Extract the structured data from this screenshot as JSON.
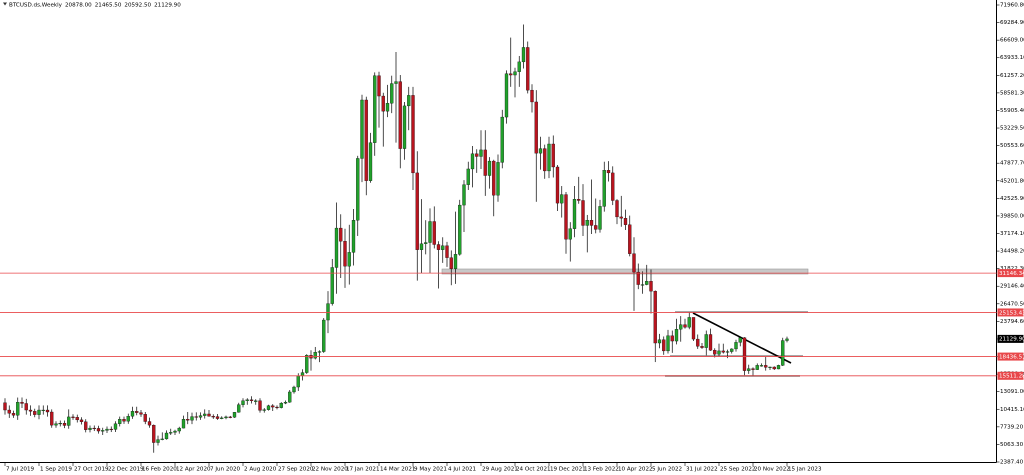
{
  "chart_data": {
    "type": "candlestick",
    "symbol": "BTCUSD.ds,Weekly",
    "ohlc_labels": [
      "20878.00",
      "21465.50",
      "20592.50",
      "21129.90"
    ],
    "up_color": "#22a02c",
    "down_color": "#b8141f",
    "wick_color": "#000000",
    "categories": [
      "7 Jul 2019",
      null,
      null,
      null,
      null,
      null,
      null,
      null,
      "1 Sep 2019",
      null,
      null,
      null,
      null,
      null,
      null,
      null,
      "27 Oct 2019",
      null,
      null,
      null,
      null,
      null,
      null,
      null,
      "22 Dec 2019",
      null,
      null,
      null,
      null,
      null,
      null,
      null,
      "16 Feb 2020",
      null,
      null,
      null,
      null,
      null,
      null,
      null,
      "12 Apr 2020",
      null,
      null,
      null,
      null,
      null,
      null,
      null,
      "7 Jun 2020",
      null,
      null,
      null,
      null,
      null,
      null,
      null,
      "2 Aug 2020",
      null,
      null,
      null,
      null,
      null,
      null,
      null,
      "27 Sep 2020",
      null,
      null,
      null,
      null,
      null,
      null,
      null,
      "22 Nov 2020",
      null,
      null,
      null,
      null,
      null,
      null,
      null,
      "17 Jan 2021",
      null,
      null,
      null,
      null,
      null,
      null,
      null,
      "14 Mar 2021",
      null,
      null,
      null,
      null,
      null,
      null,
      null,
      "9 May 2021",
      null,
      null,
      null,
      null,
      null,
      null,
      null,
      "4 Jul 2021",
      null,
      null,
      null,
      null,
      null,
      null,
      null,
      "29 Aug 2021",
      null,
      null,
      null,
      null,
      null,
      null,
      null,
      "24 Oct 2021",
      null,
      null,
      null,
      null,
      null,
      null,
      null,
      "19 Dec 2021",
      null,
      null,
      null,
      null,
      null,
      null,
      null,
      "13 Feb 2022",
      null,
      null,
      null,
      null,
      null,
      null,
      null,
      "10 Apr 2022",
      null,
      null,
      null,
      null,
      null,
      null,
      null,
      "5 Jun 2022",
      null,
      null,
      null,
      null,
      null,
      null,
      null,
      "31 Jul 2022",
      null,
      null,
      null,
      null,
      null,
      null,
      null,
      "25 Sep 2022",
      null,
      null,
      null,
      null,
      null,
      null,
      null,
      "20 Nov 2022",
      null,
      null,
      null,
      null,
      null,
      null,
      null,
      "15 Jan 2023"
    ],
    "open": [
      11400,
      10300,
      9800,
      9500,
      11500,
      11300,
      10300,
      10100,
      9600,
      10300,
      10300,
      10000,
      8000,
      8200,
      8300,
      7950,
      9250,
      9200,
      8800,
      8500,
      7300,
      7550,
      7500,
      7100,
      7200,
      7400,
      7350,
      8200,
      8900,
      8600,
      9350,
      10100,
      9900,
      9650,
      8550,
      8000,
      5350,
      5800,
      5900,
      6800,
      6900,
      7100,
      7550,
      8900,
      8750,
      9300,
      9200,
      9450,
      9700,
      9350,
      9300,
      9000,
      9100,
      9250,
      9200,
      9950,
      11100,
      11700,
      11850,
      11700,
      11700,
      10250,
      10350,
      10950,
      10750,
      10650,
      11350,
      11500,
      13050,
      13800,
      15500,
      16000,
      18650,
      18200,
      19100,
      19200,
      24000,
      26500,
      32000,
      38000,
      36000,
      32200,
      34300,
      39200,
      48600,
      57500,
      45200,
      51000,
      61200,
      58100,
      55800,
      57000,
      60000,
      60300,
      50100,
      56600,
      58200,
      46400,
      34700,
      35600,
      35800,
      39000,
      35500,
      34700,
      35300,
      33500,
      31800,
      34000,
      41500,
      44600,
      47000,
      49300,
      48900,
      49900,
      46000,
      48200,
      43000,
      48000,
      54900,
      61500,
      61300,
      61800,
      63300,
      65500,
      59000,
      57200,
      49400,
      50100,
      46700,
      50800,
      47300,
      41800,
      43100,
      36300,
      37900,
      42400,
      42200,
      38400,
      39200,
      38400,
      37800,
      41300,
      46800,
      46400,
      42200,
      39700,
      39500,
      38500,
      34100,
      31300,
      29400,
      29400,
      29900,
      28400,
      20500,
      21000,
      19300,
      21600,
      20800,
      22600,
      23300,
      22900,
      24400,
      21100,
      20000,
      19800,
      21800,
      19400,
      18800,
      19300,
      19100,
      19200,
      19600,
      20600,
      21300,
      16300,
      16600,
      16450,
      17100,
      17100,
      16800,
      16850,
      16550,
      17100,
      20878
    ],
    "high": [
      12100,
      11000,
      10200,
      12200,
      12200,
      12000,
      11000,
      10500,
      11000,
      11000,
      11000,
      10400,
      8600,
      8700,
      8700,
      10400,
      9650,
      9600,
      9200,
      8900,
      7950,
      7950,
      7900,
      7600,
      7800,
      7800,
      8600,
      9300,
      9300,
      9750,
      10800,
      10800,
      10300,
      10000,
      9150,
      8100,
      6400,
      6900,
      7200,
      7450,
      7300,
      7750,
      9450,
      10000,
      9900,
      9950,
      9950,
      10400,
      10300,
      9650,
      9700,
      9350,
      9450,
      9400,
      10000,
      11400,
      12100,
      12100,
      12400,
      11950,
      12100,
      10600,
      11100,
      11200,
      11000,
      11500,
      11750,
      13350,
      14000,
      15900,
      16500,
      18800,
      19400,
      19900,
      19400,
      24300,
      28400,
      33300,
      41900,
      40100,
      37900,
      38500,
      40900,
      49000,
      58300,
      58000,
      52500,
      61700,
      61800,
      58600,
      59800,
      61200,
      64800,
      61300,
      57200,
      59500,
      59500,
      49700,
      42400,
      39200,
      41000,
      41300,
      36000,
      36600,
      35900,
      34600,
      40500,
      42300,
      45300,
      48100,
      50500,
      50000,
      52900,
      52900,
      48800,
      48400,
      49200,
      56000,
      62000,
      67000,
      62400,
      64200,
      69000,
      66400,
      59900,
      59000,
      51900,
      50700,
      51900,
      52100,
      47600,
      44400,
      43500,
      38900,
      44400,
      45800,
      44700,
      40000,
      45400,
      42500,
      42300,
      48100,
      48200,
      47400,
      42400,
      42900,
      40800,
      39900,
      36600,
      32600,
      31400,
      32400,
      31700,
      28500,
      21900,
      21500,
      22500,
      22400,
      24200,
      24600,
      24200,
      25200,
      24400,
      21800,
      20500,
      22400,
      22700,
      19700,
      20400,
      20400,
      19500,
      19700,
      21000,
      21500,
      21400,
      17200,
      16800,
      17400,
      17400,
      18400,
      16900,
      16950,
      17200,
      21300,
      21465.5
    ],
    "low": [
      9600,
      9100,
      9100,
      8800,
      10600,
      9600,
      9400,
      9200,
      8900,
      9600,
      9300,
      7600,
      7600,
      7800,
      7550,
      7450,
      8800,
      8400,
      8100,
      6900,
      6900,
      7100,
      6700,
      6500,
      6800,
      6950,
      6950,
      7800,
      8200,
      8200,
      8950,
      9500,
      9250,
      8150,
      7600,
      3800,
      4900,
      5700,
      5800,
      6500,
      6500,
      6700,
      7500,
      8150,
      8150,
      8700,
      8800,
      9000,
      9300,
      8950,
      8800,
      8900,
      8900,
      9050,
      9100,
      9900,
      10700,
      11100,
      11300,
      11100,
      9900,
      9900,
      10200,
      10150,
      10400,
      10550,
      11200,
      11400,
      12800,
      13200,
      14800,
      15800,
      16300,
      18000,
      17600,
      19000,
      22000,
      26200,
      28000,
      30400,
      28900,
      29400,
      32300,
      36800,
      45000,
      43000,
      44900,
      49000,
      53300,
      50400,
      54900,
      55500,
      51000,
      47100,
      48400,
      52900,
      43800,
      30000,
      31100,
      34000,
      31100,
      34900,
      28800,
      32700,
      32100,
      29300,
      29500,
      33800,
      37400,
      43800,
      44200,
      46400,
      47000,
      42900,
      44000,
      39800,
      42000,
      47100,
      53900,
      59500,
      57900,
      59500,
      62300,
      58500,
      55600,
      42000,
      46900,
      45500,
      45600,
      45700,
      40600,
      39600,
      34100,
      32900,
      36600,
      41700,
      36800,
      34300,
      37100,
      37200,
      37300,
      40500,
      45100,
      41500,
      38600,
      38200,
      37700,
      33700,
      25400,
      28700,
      28000,
      29300,
      25000,
      17600,
      19700,
      18700,
      18900,
      19000,
      20300,
      20700,
      22700,
      22600,
      20800,
      19600,
      19600,
      18600,
      19300,
      18300,
      18500,
      18900,
      18200,
      18900,
      19200,
      20000,
      15600,
      15800,
      15500,
      16400,
      16900,
      16300,
      16400,
      16400,
      16500,
      17000,
      20592.5
    ],
    "close": [
      10300,
      9800,
      9500,
      11500,
      11300,
      10300,
      10100,
      9600,
      10300,
      10300,
      10000,
      8000,
      8200,
      8300,
      7950,
      9250,
      9200,
      8800,
      8500,
      7300,
      7550,
      7500,
      7100,
      7200,
      7400,
      7350,
      8200,
      8900,
      8600,
      9350,
      10100,
      9900,
      9650,
      8550,
      8000,
      5350,
      5800,
      5900,
      6800,
      6900,
      7100,
      7550,
      8900,
      8750,
      9300,
      9200,
      9450,
      9700,
      9350,
      9300,
      9000,
      9100,
      9250,
      9200,
      9950,
      11100,
      11700,
      11850,
      11700,
      11700,
      10250,
      10350,
      10950,
      10750,
      10650,
      11350,
      11500,
      13050,
      13800,
      15500,
      16000,
      18650,
      18200,
      19100,
      19200,
      24000,
      26500,
      32000,
      38000,
      36000,
      32200,
      34300,
      39200,
      48600,
      57500,
      45200,
      51000,
      61200,
      58100,
      55800,
      57000,
      60000,
      60300,
      50100,
      56600,
      58200,
      46400,
      34700,
      35600,
      35800,
      39000,
      35500,
      34700,
      35300,
      33500,
      31800,
      34000,
      41500,
      44600,
      47000,
      49300,
      48900,
      49900,
      46000,
      48200,
      43000,
      48000,
      54900,
      61500,
      61300,
      61800,
      63300,
      65500,
      59000,
      57200,
      49400,
      50100,
      46700,
      50800,
      47300,
      41800,
      43100,
      36300,
      37900,
      42400,
      42200,
      38400,
      39200,
      38400,
      37800,
      41300,
      46800,
      46400,
      42200,
      39700,
      39500,
      38500,
      34100,
      31300,
      29400,
      29400,
      29900,
      28400,
      20500,
      21000,
      19300,
      21600,
      20800,
      22600,
      23300,
      22900,
      24400,
      21100,
      20000,
      19800,
      21800,
      19400,
      18800,
      19300,
      19100,
      19200,
      19600,
      20600,
      21300,
      16300,
      16600,
      16450,
      17100,
      17100,
      16800,
      16850,
      16550,
      17100,
      20878,
      21129.9
    ],
    "ylim": [
      2387.4,
      71960.8
    ],
    "yticks": [
      {
        "value": 2387.4,
        "label": "2387.40"
      },
      {
        "value": 5063.3,
        "label": "5063.30"
      },
      {
        "value": 7739.2,
        "label": "7739.20"
      },
      {
        "value": 10415.1,
        "label": "10415.10"
      },
      {
        "value": 13091,
        "label": "13091.00"
      },
      {
        "value": 15766.9,
        "label": "15766.90"
      },
      {
        "value": 18442.8,
        "label": "18442.80"
      },
      {
        "value": 21118.7,
        "label": "21118.70"
      },
      {
        "value": 23794.6,
        "label": "23794.60"
      },
      {
        "value": 26470.5,
        "label": "26470.50"
      },
      {
        "value": 29146.4,
        "label": "29146.40"
      },
      {
        "value": 31822.3,
        "label": "31822.30"
      },
      {
        "value": 34498.2,
        "label": "34498.20"
      },
      {
        "value": 37174.1,
        "label": "37174.10"
      },
      {
        "value": 39850,
        "label": "39850.00"
      },
      {
        "value": 42525.9,
        "label": "42525.90"
      },
      {
        "value": 45201.8,
        "label": "45201.80"
      },
      {
        "value": 47877.7,
        "label": "47877.70"
      },
      {
        "value": 50553.6,
        "label": "50553.60"
      },
      {
        "value": 53229.5,
        "label": "53229.50"
      },
      {
        "value": 55905.4,
        "label": "55905.40"
      },
      {
        "value": 58581.3,
        "label": "58581.30"
      },
      {
        "value": 61257.2,
        "label": "61257.20"
      },
      {
        "value": 63933.1,
        "label": "63933.10"
      },
      {
        "value": 66609,
        "label": "66609.00"
      },
      {
        "value": 69284.9,
        "label": "69284.90"
      },
      {
        "value": 71960.8,
        "label": "71960.80"
      }
    ],
    "hlines": [
      {
        "value": 31146.34,
        "label": "31146.34",
        "color": "#e8474a",
        "line": true
      },
      {
        "value": 25153.43,
        "label": "25153.43",
        "color": "#e8474a",
        "line": true
      },
      {
        "value": 21129.9,
        "label": "21129.90",
        "color": "#000000",
        "line": false
      },
      {
        "value": 18436.51,
        "label": "18436.51",
        "color": "#e8474a",
        "line": true
      },
      {
        "value": 15511.28,
        "label": "15511.28",
        "color": "#e8474a",
        "line": true
      }
    ]
  }
}
